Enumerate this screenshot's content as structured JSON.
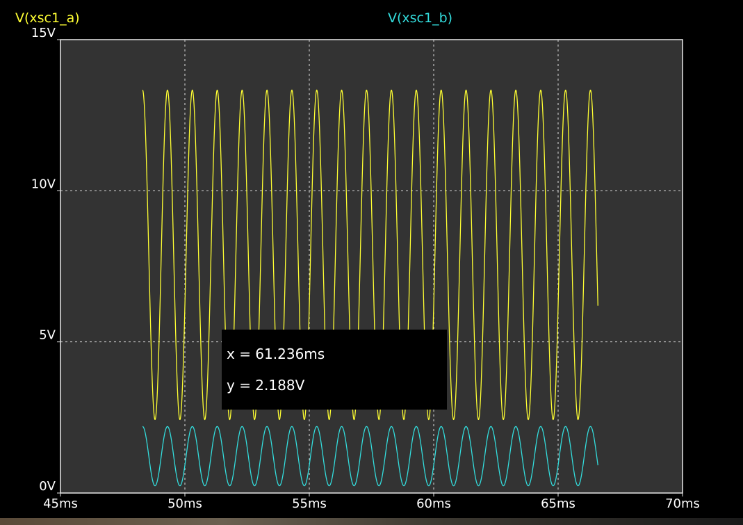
{
  "chart_data": {
    "type": "line",
    "xunit": "ms",
    "yunit": "V",
    "xlim": [
      45,
      70
    ],
    "ylim": [
      0,
      15
    ],
    "x_ticks": [
      "45ms",
      "50ms",
      "55ms",
      "60ms",
      "65ms",
      "70ms"
    ],
    "y_ticks": [
      "15V",
      "10V",
      "5V",
      "0V"
    ],
    "grid": true,
    "legend_position": "top",
    "series": [
      {
        "name": "V(xsc1_a)",
        "color": "#ffff33",
        "x_start": 48.3,
        "x_end": 66.6,
        "offset": 7.88,
        "amplitude": 5.45,
        "period": 1.0,
        "phase_ms": 48.05,
        "peak_times": [
          48.81,
          49.81,
          50.81,
          51.81,
          52.81,
          53.81,
          54.81,
          55.81,
          56.81,
          57.81,
          58.81,
          59.81,
          60.81,
          61.81,
          62.81,
          63.81,
          64.81,
          65.81
        ],
        "max": 13.33,
        "min": 2.43
      },
      {
        "name": "V(xsc1_b)",
        "color": "#33dddd",
        "x_start": 48.3,
        "x_end": 66.6,
        "offset": 1.22,
        "amplitude": 0.98,
        "period": 1.0,
        "phase_ms": 48.05,
        "max": 2.2,
        "min": 0.24
      }
    ]
  },
  "cursor": {
    "x_text": "x = 61.236ms",
    "y_text": "y = 2.188V"
  }
}
